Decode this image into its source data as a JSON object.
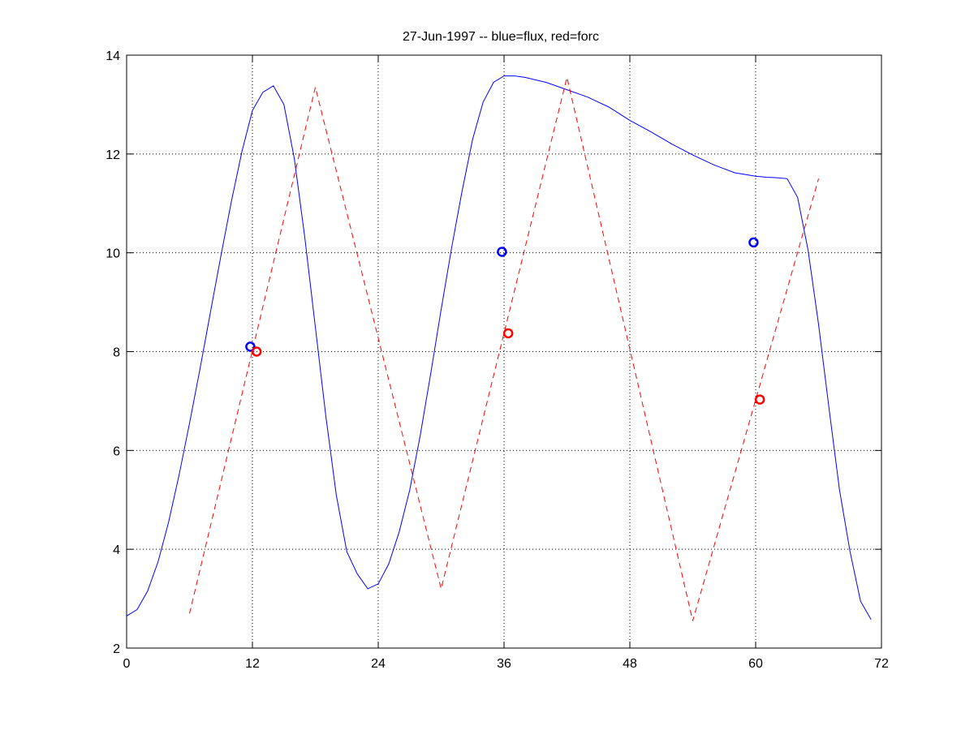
{
  "chart_data": {
    "type": "line",
    "title": "27-Jun-1997 -- blue=flux, red=forc",
    "xlabel": "",
    "ylabel": "",
    "xlim": [
      0,
      72
    ],
    "ylim": [
      2,
      14
    ],
    "xticks": [
      0,
      12,
      24,
      36,
      48,
      60,
      72
    ],
    "yticks": [
      2,
      4,
      6,
      8,
      10,
      12,
      14
    ],
    "grid": true,
    "series": [
      {
        "color": "#0000ff",
        "style": "solid",
        "x": [
          0,
          1,
          2,
          3,
          4,
          5,
          6,
          7,
          8,
          9,
          10,
          11,
          12,
          13,
          14,
          15,
          16,
          17,
          18,
          19,
          20,
          21,
          22,
          23,
          24,
          25,
          26,
          27,
          28,
          29,
          30,
          31,
          32,
          33,
          34,
          35,
          36,
          37,
          38,
          39,
          40,
          42,
          44,
          46,
          48,
          50,
          52,
          54,
          56,
          58,
          60,
          61,
          62,
          63,
          64,
          65,
          66,
          67,
          68,
          69,
          70,
          71
        ],
        "y": [
          2.65,
          2.78,
          3.15,
          3.75,
          4.55,
          5.5,
          6.55,
          7.65,
          8.8,
          9.95,
          11.05,
          12.05,
          12.88,
          13.25,
          13.38,
          13.0,
          11.9,
          10.3,
          8.5,
          6.7,
          5.1,
          3.95,
          3.5,
          3.2,
          3.3,
          3.7,
          4.35,
          5.2,
          6.3,
          7.55,
          8.85,
          10.1,
          11.25,
          12.3,
          13.05,
          13.45,
          13.58,
          13.58,
          13.55,
          13.5,
          13.45,
          13.3,
          13.15,
          12.95,
          12.68,
          12.45,
          12.2,
          11.98,
          11.78,
          11.62,
          11.55,
          11.53,
          11.52,
          11.5,
          11.12,
          10.05,
          8.55,
          6.85,
          5.2,
          3.95,
          2.95,
          2.58
        ]
      },
      {
        "color": "#ff0000",
        "style": "dashed",
        "x": [
          6,
          18,
          30,
          42,
          54,
          66
        ],
        "y": [
          2.7,
          13.35,
          3.2,
          13.55,
          2.55,
          11.5
        ]
      }
    ],
    "markers": [
      {
        "x": 11.8,
        "y": 8.1,
        "color": "#0000ff"
      },
      {
        "x": 12.4,
        "y": 8.0,
        "color": "#ff0000"
      },
      {
        "x": 35.8,
        "y": 10.02,
        "color": "#0000ff"
      },
      {
        "x": 36.4,
        "y": 8.37,
        "color": "#ff0000"
      },
      {
        "x": 59.8,
        "y": 10.21,
        "color": "#0000ff"
      },
      {
        "x": 60.4,
        "y": 7.03,
        "color": "#ff0000"
      }
    ]
  }
}
